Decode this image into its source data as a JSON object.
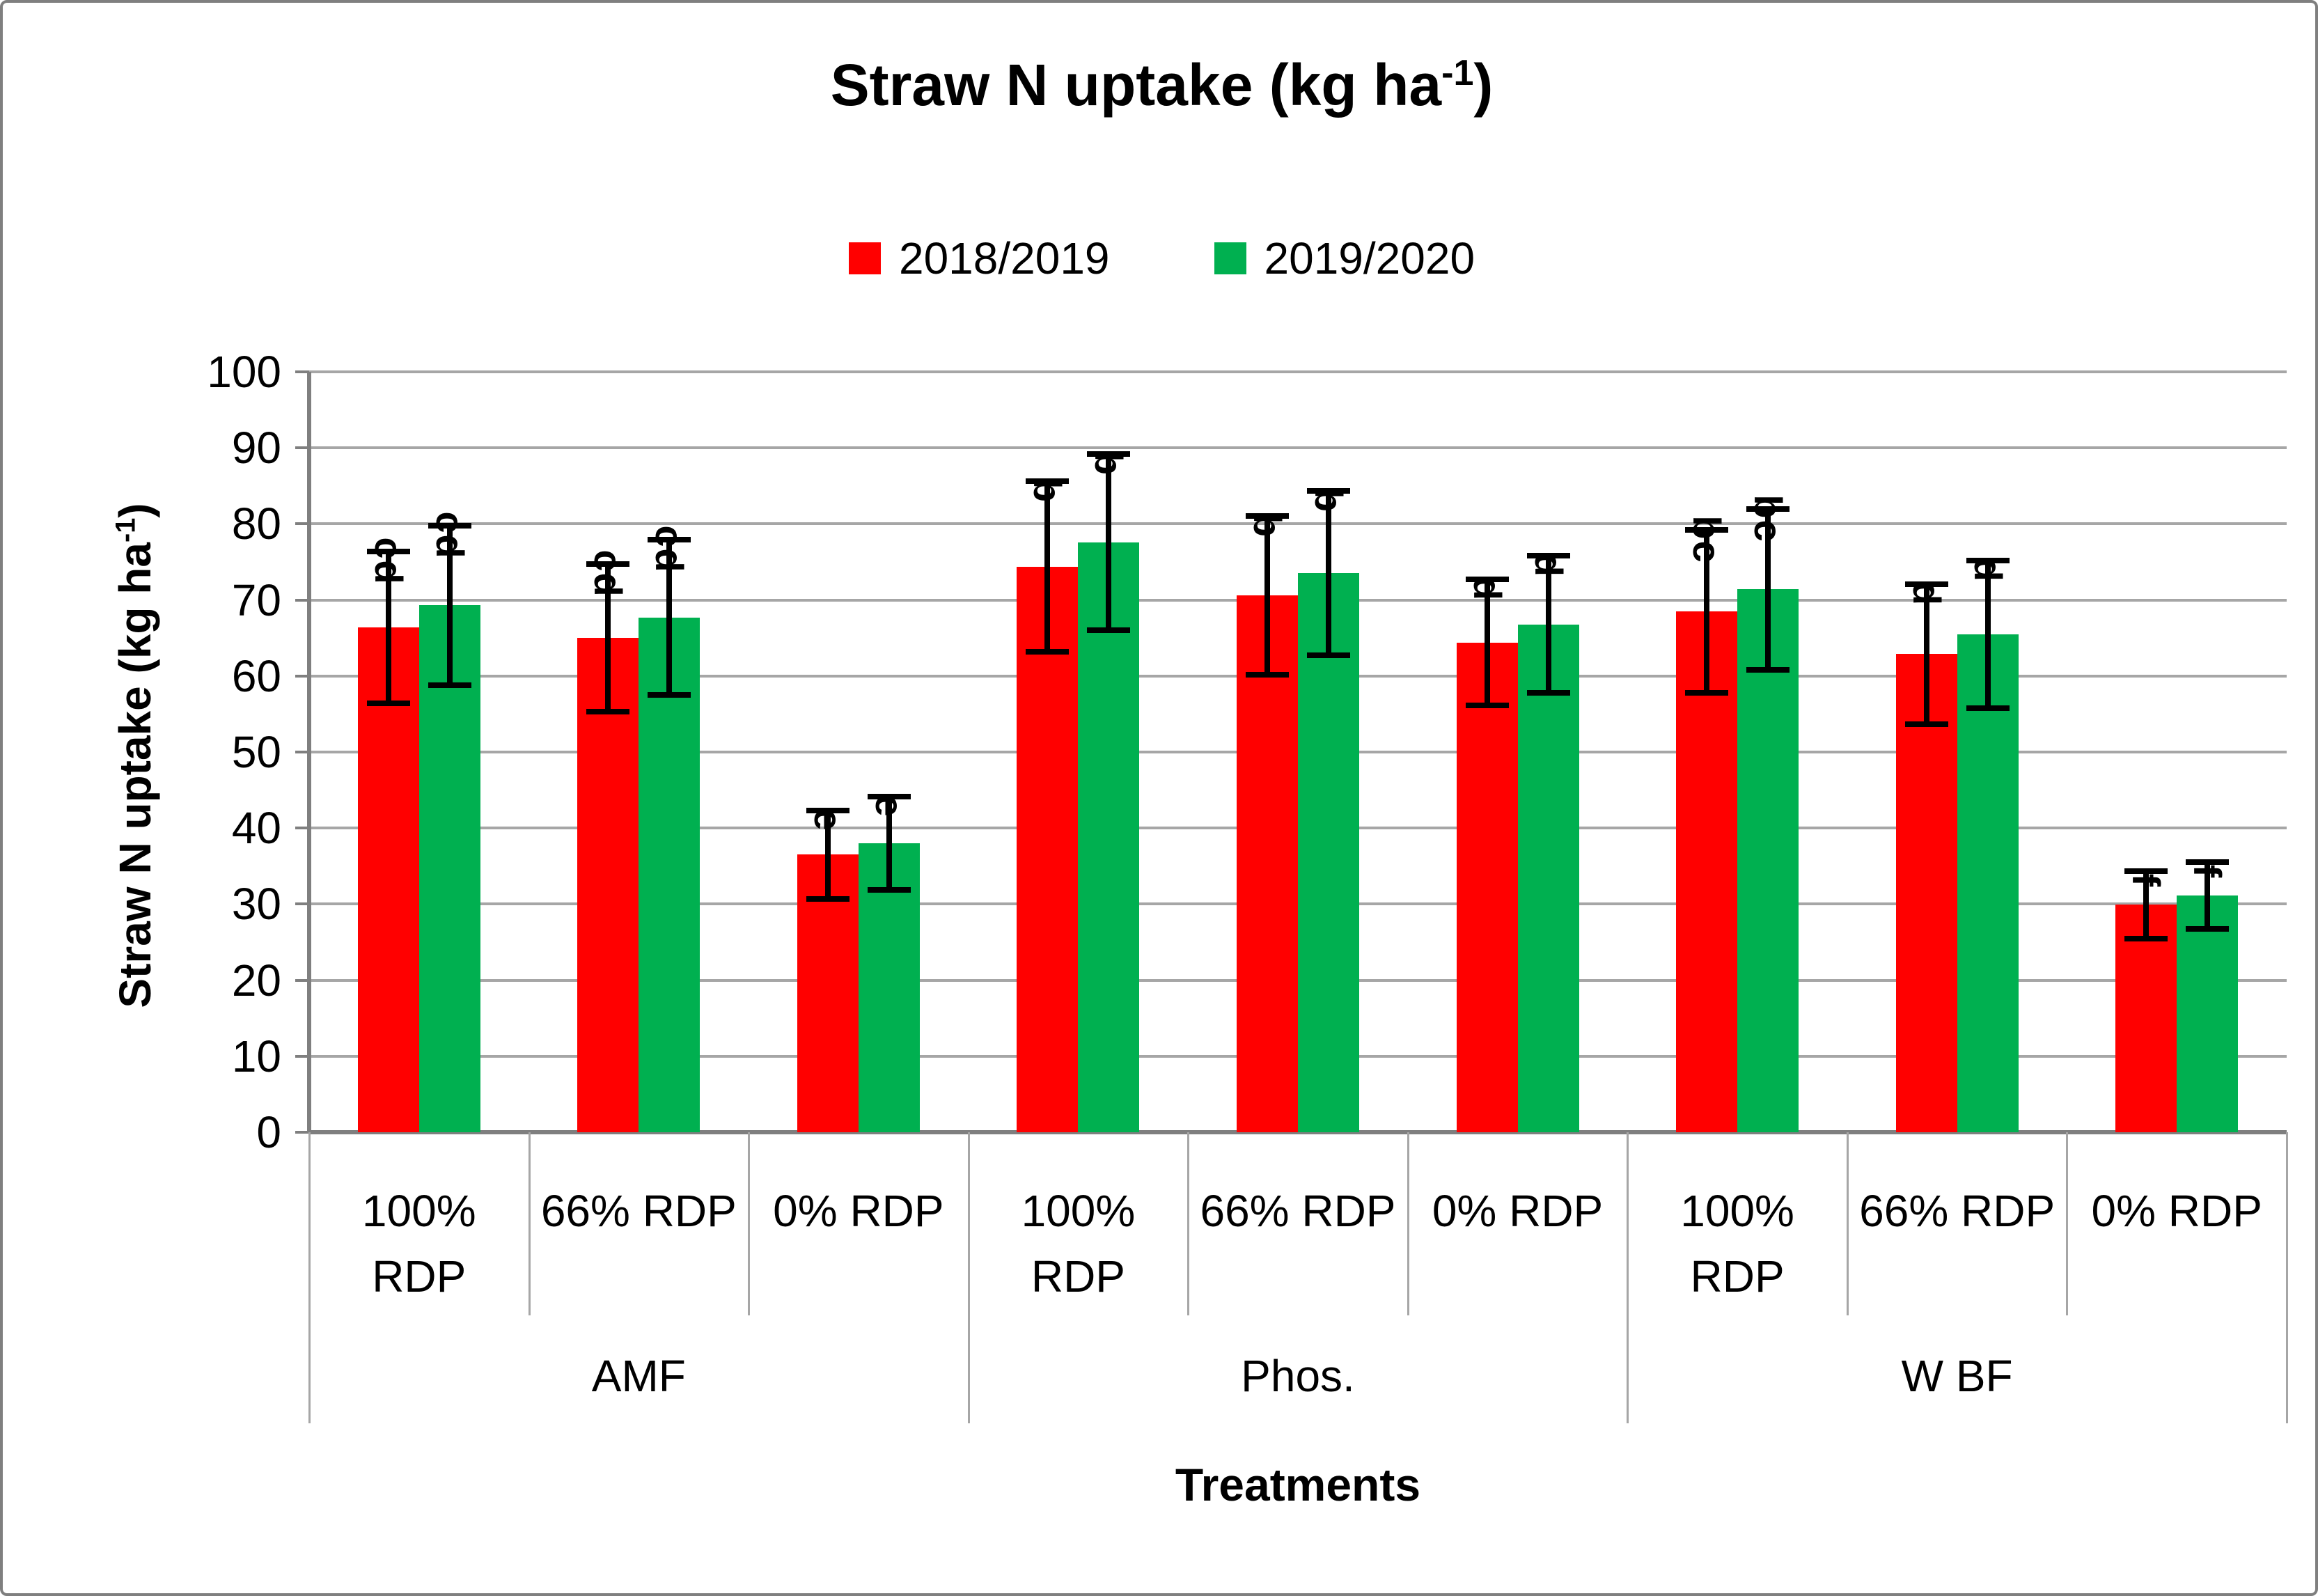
{
  "title": {
    "prefix": "Straw N uptake (kg ha",
    "superscript": "-1",
    "suffix": ")"
  },
  "legend": {
    "items": [
      {
        "label": "2018/2019",
        "color": "#ff0000"
      },
      {
        "label": "2019/2020",
        "color": "#00b050"
      }
    ]
  },
  "y_axis": {
    "title_prefix": "Straw N uptake (kg ha",
    "title_superscript": "-1",
    "title_suffix": ")",
    "min": 0,
    "max": 100,
    "step": 10,
    "tick_labels": [
      "0",
      "10",
      "20",
      "30",
      "40",
      "50",
      "60",
      "70",
      "80",
      "90",
      "100"
    ]
  },
  "x_axis": {
    "title": "Treatments",
    "category_label_lines": [
      [
        "100%",
        "RDP"
      ],
      [
        "66% RDP"
      ],
      [
        "0% RDP"
      ],
      [
        "100%",
        "RDP"
      ],
      [
        "66% RDP"
      ],
      [
        "0% RDP"
      ],
      [
        "100%",
        "RDP"
      ],
      [
        "66% RDP"
      ],
      [
        "0% RDP"
      ]
    ],
    "group_labels": [
      "AMF",
      "Phos.",
      "W BF"
    ]
  },
  "chart_data": {
    "type": "bar",
    "title": "Straw N uptake (kg ha-1)",
    "xlabel": "Treatments",
    "ylabel": "Straw N uptake (kg ha-1)",
    "ylim": [
      0,
      100
    ],
    "y_tick_step": 10,
    "grid": true,
    "legend_position": "top",
    "groups": [
      "AMF",
      "Phos.",
      "W BF"
    ],
    "categories": [
      "100% RDP",
      "66% RDP",
      "0% RDP",
      "100% RDP",
      "66% RDP",
      "0% RDP",
      "100% RDP",
      "66% RDP",
      "0% RDP"
    ],
    "category_group_index": [
      0,
      0,
      0,
      1,
      1,
      1,
      2,
      2,
      2
    ],
    "series": [
      {
        "name": "2018/2019",
        "color": "#ff0000",
        "values": [
          66.4,
          65.0,
          36.5,
          74.4,
          70.6,
          64.4,
          68.5,
          62.9,
          29.9
        ],
        "errors": [
          10.0,
          9.7,
          5.8,
          11.2,
          10.4,
          8.3,
          10.7,
          9.2,
          4.4
        ]
      },
      {
        "name": "2019/2020",
        "color": "#00b050",
        "values": [
          69.3,
          67.7,
          38.0,
          77.6,
          73.5,
          66.8,
          71.4,
          65.5,
          31.1
        ],
        "errors": [
          10.5,
          10.2,
          6.1,
          11.6,
          10.8,
          9.0,
          10.6,
          9.7,
          4.4
        ]
      }
    ],
    "significance_letters": [
      "cd",
      "cd",
      "e",
      "b",
      "b",
      "d",
      "bc",
      "d",
      "f"
    ],
    "significance_letters_rotated_90deg": true,
    "error_bars": "plus-minus, black, capped"
  }
}
